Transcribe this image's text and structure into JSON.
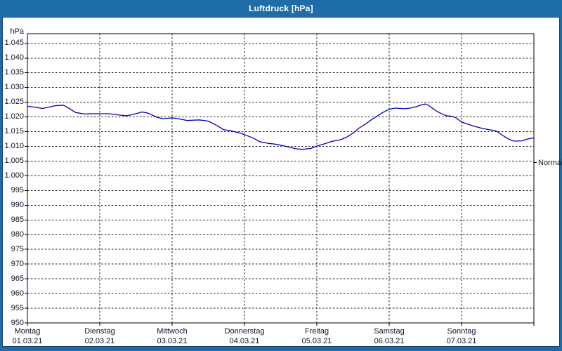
{
  "window": {
    "title": "Luftdruck [hPa]"
  },
  "colors": {
    "frame_blue": "#1e6da8",
    "frame_dark_border": "#1a3c6e",
    "plot_background": "#ffffff",
    "grid_color": "#1c1c1c",
    "axis_color": "#000000",
    "text_color": "#10102a",
    "series_line": "#0000b4"
  },
  "chart_data": {
    "type": "line",
    "title": "Luftdruck [hPa]",
    "ylabel": "hPa",
    "unit_label": "hPa",
    "grid": "dashed",
    "legend_position": "none",
    "ylim": [
      950,
      1048.3
    ],
    "x_range_hours": [
      0,
      168
    ],
    "y_ticks": [
      {
        "value": 1045,
        "label": "1.045"
      },
      {
        "value": 1040,
        "label": "1.040"
      },
      {
        "value": 1035,
        "label": "1.035"
      },
      {
        "value": 1030,
        "label": "1.030"
      },
      {
        "value": 1025,
        "label": "1.025"
      },
      {
        "value": 1020,
        "label": "1.020"
      },
      {
        "value": 1015,
        "label": "1.015"
      },
      {
        "value": 1010,
        "label": "1.010"
      },
      {
        "value": 1005,
        "label": "1.005"
      },
      {
        "value": 1000,
        "label": "1.000"
      },
      {
        "value": 995,
        "label": "995"
      },
      {
        "value": 990,
        "label": "990"
      },
      {
        "value": 985,
        "label": "985"
      },
      {
        "value": 980,
        "label": "980"
      },
      {
        "value": 975,
        "label": "975"
      },
      {
        "value": 970,
        "label": "970"
      },
      {
        "value": 965,
        "label": "965"
      },
      {
        "value": 960,
        "label": "960"
      },
      {
        "value": 955,
        "label": "955"
      },
      {
        "value": 950,
        "label": "950"
      }
    ],
    "x_days": [
      {
        "name": "Montag",
        "date": "01.03.21"
      },
      {
        "name": "Dienstag",
        "date": "02.03.21"
      },
      {
        "name": "Mittwoch",
        "date": "03.03.21"
      },
      {
        "name": "Donnerstag",
        "date": "04.03.21"
      },
      {
        "name": "Freitag",
        "date": "05.03.21"
      },
      {
        "name": "Samstag",
        "date": "06.03.21"
      },
      {
        "name": "Sonntag",
        "date": "07.03.21"
      }
    ],
    "normal_marker": {
      "label": "Normal",
      "value": 1004.5
    },
    "series": [
      {
        "name": "Luftdruck",
        "color": "#0000b4",
        "points": [
          [
            0,
            1023.6
          ],
          [
            2,
            1023.4
          ],
          [
            5,
            1022.9
          ],
          [
            7,
            1023.3
          ],
          [
            9,
            1023.8
          ],
          [
            12,
            1024.0
          ],
          [
            14,
            1022.8
          ],
          [
            16,
            1021.5
          ],
          [
            19,
            1021.0
          ],
          [
            21,
            1021.1
          ],
          [
            24,
            1021.1
          ],
          [
            27,
            1021.1
          ],
          [
            31,
            1020.6
          ],
          [
            33,
            1020.4
          ],
          [
            36,
            1021.1
          ],
          [
            38,
            1021.7
          ],
          [
            40,
            1021.3
          ],
          [
            43,
            1019.9
          ],
          [
            45,
            1019.4
          ],
          [
            48,
            1019.7
          ],
          [
            50,
            1019.4
          ],
          [
            53,
            1018.8
          ],
          [
            57,
            1019.0
          ],
          [
            60,
            1018.6
          ],
          [
            63,
            1017.0
          ],
          [
            65,
            1015.7
          ],
          [
            68,
            1015.2
          ],
          [
            71,
            1014.4
          ],
          [
            72,
            1014.0
          ],
          [
            75,
            1012.8
          ],
          [
            77,
            1011.6
          ],
          [
            80,
            1011.0
          ],
          [
            82,
            1010.8
          ],
          [
            84,
            1010.4
          ],
          [
            87,
            1009.7
          ],
          [
            89,
            1009.2
          ],
          [
            91,
            1009.0
          ],
          [
            94,
            1009.3
          ],
          [
            96,
            1010.1
          ],
          [
            99,
            1011.0
          ],
          [
            101,
            1011.7
          ],
          [
            104,
            1012.3
          ],
          [
            106,
            1013.2
          ],
          [
            108,
            1014.5
          ],
          [
            110,
            1016.2
          ],
          [
            112,
            1017.5
          ],
          [
            114,
            1019.0
          ],
          [
            116,
            1020.3
          ],
          [
            118,
            1021.6
          ],
          [
            120,
            1022.6
          ],
          [
            122,
            1023.0
          ],
          [
            125,
            1022.8
          ],
          [
            127,
            1023.0
          ],
          [
            129,
            1023.5
          ],
          [
            131,
            1024.2
          ],
          [
            132,
            1024.4
          ],
          [
            133,
            1024.0
          ],
          [
            134,
            1023.2
          ],
          [
            136,
            1021.8
          ],
          [
            138,
            1020.8
          ],
          [
            139,
            1020.4
          ],
          [
            141,
            1020.2
          ],
          [
            142,
            1019.8
          ],
          [
            144,
            1018.3
          ],
          [
            146,
            1017.6
          ],
          [
            148,
            1016.9
          ],
          [
            151,
            1016.1
          ],
          [
            153,
            1015.7
          ],
          [
            155,
            1015.4
          ],
          [
            156,
            1014.9
          ],
          [
            158,
            1013.5
          ],
          [
            160,
            1012.3
          ],
          [
            161,
            1011.9
          ],
          [
            162,
            1011.8
          ],
          [
            164,
            1011.9
          ],
          [
            165,
            1012.2
          ],
          [
            166,
            1012.5
          ],
          [
            168,
            1012.9
          ]
        ]
      }
    ]
  }
}
